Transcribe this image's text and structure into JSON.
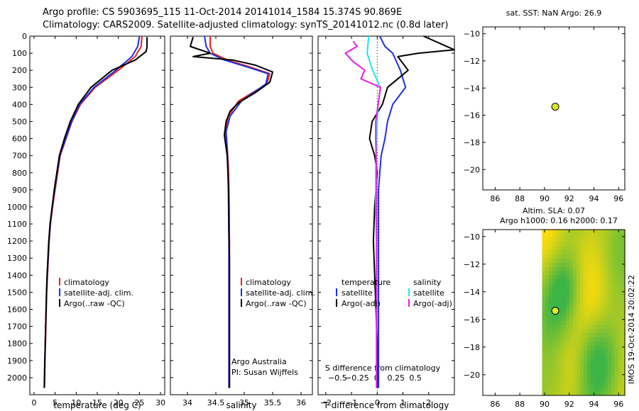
{
  "header": {
    "line1": "Argo profile: CS 5903695_115 11-Oct-2014 20141014_1584 15.374S 90.869E",
    "line2": "Climatology: CARS2009. Satellite-adjusted climatology: synTS_20141012.nc (0.8d later)"
  },
  "side_stamp": "IMOS 19-Oct-2014 20:02:22",
  "colors": {
    "climatology": "#e8231a",
    "satellite": "#1f2fe0",
    "argo": "#000000",
    "salinity_satellite": "#22e6ee",
    "salinity_argo": "#e61ee6",
    "marker": "#d8ec2a",
    "map_bg": "#4fc24a"
  },
  "chart_data": [
    {
      "type": "line",
      "panel": "temperature",
      "xlabel": "temperature (deg C)",
      "ylabel": "",
      "xlim": [
        -1,
        31
      ],
      "ylim": [
        2100,
        0
      ],
      "xticks": [
        0,
        5,
        10,
        15,
        20,
        25,
        30
      ],
      "yticks": [
        0,
        100,
        200,
        300,
        400,
        500,
        600,
        700,
        800,
        900,
        1000,
        1100,
        1200,
        1300,
        1400,
        1500,
        1600,
        1700,
        1800,
        1900,
        2000
      ],
      "legend": [
        "climatology",
        "satellite-adj. clim.",
        "Argo(..raw -QC)"
      ],
      "series": [
        {
          "name": "climatology",
          "x": [
            25.6,
            25.4,
            24,
            20,
            14.5,
            11,
            9,
            7.6,
            6.2,
            5.6,
            5,
            4.4,
            3.9,
            3.6,
            3.4,
            3.2,
            3,
            2.9,
            2.8,
            2.7,
            2.6,
            2.5,
            2.45
          ],
          "y": [
            0,
            60,
            120,
            200,
            300,
            400,
            500,
            600,
            700,
            800,
            900,
            1000,
            1100,
            1200,
            1300,
            1400,
            1500,
            1600,
            1700,
            1800,
            1900,
            2000,
            2060
          ]
        },
        {
          "name": "satellite-adj. clim.",
          "x": [
            25,
            24.6,
            23.2,
            19.4,
            14.2,
            10.8,
            8.9,
            7.5,
            6.1,
            5.5,
            4.9,
            4.3,
            3.85,
            3.55,
            3.35,
            3.15,
            2.95,
            2.85,
            2.75,
            2.65,
            2.55,
            2.45,
            2.4
          ],
          "y": [
            0,
            60,
            120,
            200,
            300,
            400,
            500,
            600,
            700,
            800,
            900,
            1000,
            1100,
            1200,
            1300,
            1400,
            1500,
            1600,
            1700,
            1800,
            1900,
            2000,
            2060
          ]
        },
        {
          "name": "Argo(..raw -QC)",
          "x": [
            26.8,
            26.8,
            26.6,
            24,
            18.5,
            13.5,
            10.5,
            8.6,
            7.2,
            6,
            5.4,
            4.8,
            4.3,
            3.8,
            3.5,
            3.3,
            3.1,
            2.95,
            2.85,
            2.75,
            2.65,
            2.55,
            2.5,
            2.45
          ],
          "y": [
            5,
            60,
            90,
            140,
            200,
            300,
            400,
            500,
            600,
            700,
            800,
            900,
            1000,
            1100,
            1200,
            1300,
            1400,
            1500,
            1600,
            1700,
            1800,
            1900,
            2000,
            2060
          ]
        }
      ]
    },
    {
      "type": "line",
      "panel": "salinity",
      "xlabel": "salinity",
      "xlim": [
        33.7,
        36.2
      ],
      "ylim": [
        2100,
        0
      ],
      "xticks": [
        34,
        34.5,
        35,
        35.5,
        36
      ],
      "legend": [
        "climatology",
        "satellite-adj. clim.",
        "Argo(..raw -QC)"
      ],
      "annotations": [
        "Argo Australia",
        "PI: Susan Wijffels"
      ],
      "series": [
        {
          "name": "climatology",
          "x": [
            34.4,
            34.4,
            34.45,
            34.7,
            35.1,
            35.45,
            35.4,
            34.9,
            34.72,
            34.66,
            34.7,
            34.72,
            34.73,
            34.735,
            34.74,
            34.74,
            34.74,
            34.74,
            34.74,
            34.74,
            34.74,
            34.74
          ],
          "y": [
            0,
            60,
            100,
            140,
            180,
            220,
            280,
            380,
            470,
            560,
            650,
            760,
            900,
            1050,
            1200,
            1350,
            1500,
            1650,
            1800,
            1950,
            2000,
            2060
          ]
        },
        {
          "name": "satellite-adj. clim.",
          "x": [
            34.3,
            34.33,
            34.4,
            34.65,
            35.05,
            35.42,
            35.38,
            34.95,
            34.75,
            34.68,
            34.7,
            34.71,
            34.72,
            34.725,
            34.73,
            34.73,
            34.73,
            34.73,
            34.73,
            34.73,
            34.73,
            34.73
          ],
          "y": [
            0,
            60,
            100,
            140,
            180,
            220,
            280,
            380,
            470,
            560,
            650,
            760,
            900,
            1050,
            1200,
            1350,
            1500,
            1650,
            1800,
            1950,
            2000,
            2060
          ]
        },
        {
          "name": "Argo(..raw -QC)",
          "x": [
            34.1,
            34.05,
            34.4,
            34.1,
            34.8,
            35.2,
            35.5,
            35.45,
            35.2,
            34.9,
            34.75,
            34.68,
            34.65,
            34.7,
            34.72,
            34.73,
            34.73,
            34.74,
            34.74,
            34.74,
            34.74,
            34.74,
            34.74,
            34.74
          ],
          "y": [
            5,
            60,
            100,
            120,
            140,
            170,
            210,
            270,
            330,
            390,
            440,
            500,
            580,
            700,
            850,
            1000,
            1150,
            1300,
            1450,
            1600,
            1750,
            1900,
            2000,
            2060
          ]
        }
      ]
    },
    {
      "type": "line",
      "panel": "difference",
      "xlabel": "T difference from climatology",
      "xlabel_top": "S difference from climatology",
      "xlim": [
        -2.3,
        3
      ],
      "s_xlim": [
        -0.75,
        1
      ],
      "ylim": [
        2100,
        0
      ],
      "xticks": [
        -2,
        -1,
        0,
        1,
        2
      ],
      "s_xticks": [
        -0.5,
        -0.25,
        0,
        0.25,
        0.5
      ],
      "legend_temperature": [
        "temperature",
        "satellite",
        "Argo(-adj)"
      ],
      "legend_salinity": [
        "salinity",
        "satellite",
        "Argo(-adj)"
      ],
      "series": [
        {
          "name": "T satellite",
          "x": [
            0.1,
            0.3,
            0.6,
            0.9,
            1.1,
            0.6,
            0.4,
            0.3,
            0.15,
            0.1,
            0.05,
            0.05,
            0.05,
            0.05,
            0.05,
            0.05,
            0.05,
            0.05,
            0.05
          ],
          "y": [
            0,
            60,
            100,
            200,
            300,
            400,
            500,
            600,
            700,
            800,
            900,
            1000,
            1200,
            1400,
            1600,
            1800,
            1900,
            2000,
            2060
          ]
        },
        {
          "name": "T Argo(-adj)",
          "x": [
            1.8,
            3,
            1.6,
            0.8,
            1.2,
            0.4,
            0.2,
            -0.2,
            -0.3,
            -0.1,
            0,
            -0.1,
            -0.15,
            -0.1,
            -0.05,
            0,
            0,
            0,
            0
          ],
          "y": [
            0,
            80,
            100,
            120,
            200,
            300,
            400,
            500,
            600,
            700,
            800,
            1000,
            1200,
            1400,
            1600,
            1800,
            1900,
            2000,
            2060
          ]
        },
        {
          "name": "S satellite",
          "x": [
            -0.1,
            -0.12,
            -0.05,
            0.05,
            0.02,
            0.01,
            0,
            -0.01,
            -0.01,
            0,
            0,
            0,
            0
          ],
          "y": [
            0,
            100,
            200,
            300,
            400,
            500,
            600,
            800,
            1000,
            1200,
            1500,
            1800,
            2060
          ]
        },
        {
          "name": "S Argo(-adj)",
          "x": [
            -0.3,
            -0.25,
            -0.4,
            -0.3,
            -0.15,
            -0.2,
            0.05,
            0.02,
            -0.01,
            -0.01,
            0,
            0,
            0,
            0
          ],
          "y": [
            30,
            60,
            100,
            150,
            200,
            250,
            300,
            400,
            500,
            600,
            800,
            1200,
            1600,
            2060
          ]
        }
      ]
    },
    {
      "type": "scatter",
      "panel": "sst-map",
      "title": "sat. SST: NaN Argo: 26.9",
      "xlim": [
        85,
        96.5
      ],
      "ylim": [
        -21.5,
        -9.5
      ],
      "xticks": [
        86,
        88,
        90,
        92,
        94,
        96
      ],
      "yticks": [
        -10,
        -12,
        -14,
        -16,
        -18,
        -20
      ],
      "points": [
        {
          "x": 90.869,
          "y": -15.374
        }
      ]
    },
    {
      "type": "heatmap",
      "panel": "sla-map",
      "title": "Altim. SLA: 0.07",
      "subtitle": "Argo h1000: 0.16 h2000: 0.17",
      "xlim": [
        85,
        96.5
      ],
      "ylim": [
        -21.5,
        -9.5
      ],
      "xticks": [
        86,
        88,
        90,
        92,
        94,
        96
      ],
      "yticks": [
        -10,
        -12,
        -14,
        -16,
        -18,
        -20
      ],
      "data_xrange": [
        89.8,
        96.5
      ],
      "points": [
        {
          "x": 90.869,
          "y": -15.374
        }
      ]
    }
  ]
}
